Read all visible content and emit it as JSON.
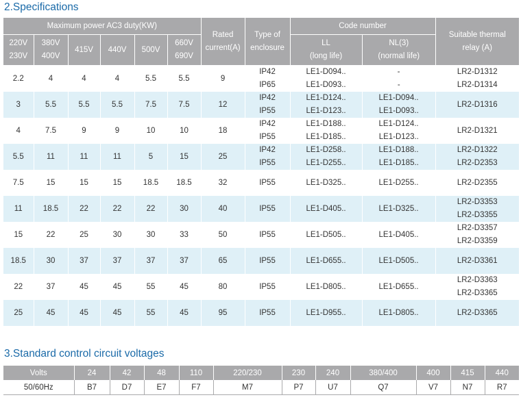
{
  "spec_title": "2.Specifications",
  "voltage_title": "3.Standard control circuit voltages",
  "spec_header": {
    "max_power": "Maximum power AC3 duty(KW)",
    "voltages": [
      [
        "220V",
        "230V"
      ],
      [
        "380V",
        "400V"
      ],
      [
        "415V"
      ],
      [
        "440V"
      ],
      [
        "500V"
      ],
      [
        "660V",
        "690V"
      ]
    ],
    "rated_current": [
      "Rated",
      "current(A)"
    ],
    "enclosure": [
      "Type of",
      "enclosure"
    ],
    "code_number": "Code number",
    "ll": [
      "LL",
      "(long life)"
    ],
    "nl": [
      "NL(3)",
      "(normal life)"
    ],
    "relay": [
      "Suitable thermal",
      "relay (A)"
    ]
  },
  "spec_rows": [
    {
      "p": [
        "2.2",
        "4",
        "4",
        "4",
        "5.5",
        "5.5"
      ],
      "a": "9",
      "enc": [
        "IP42",
        "IP65"
      ],
      "ll": [
        "LE1-D094..",
        "LE1-D093.."
      ],
      "nl": [
        "-",
        "-"
      ],
      "relay": [
        "LR2-D1312",
        "LR2-D1314"
      ]
    },
    {
      "p": [
        "3",
        "5.5",
        "5.5",
        "5.5",
        "7.5",
        "7.5"
      ],
      "a": "12",
      "enc": [
        "IP42",
        "IP55"
      ],
      "ll": [
        "LE1-D124..",
        "LE1-D123.."
      ],
      "nl": [
        "LE1-D094..",
        "LE1-D093.."
      ],
      "relay": [
        "LR2-D1316"
      ]
    },
    {
      "p": [
        "4",
        "7.5",
        "9",
        "9",
        "10",
        "10"
      ],
      "a": "18",
      "enc": [
        "IP42",
        "IP55"
      ],
      "ll": [
        "LE1-D188..",
        "LE1-D185.."
      ],
      "nl": [
        "LE1-D124..",
        "LE1-D123.."
      ],
      "relay": [
        "LR2-D1321"
      ]
    },
    {
      "p": [
        "5.5",
        "11",
        "11",
        "11",
        "5",
        "15"
      ],
      "a": "25",
      "enc": [
        "IP42",
        "IP55"
      ],
      "ll": [
        "LE1-D258..",
        "LE1-D255.."
      ],
      "nl": [
        "LE1-D188..",
        "LE1-D185.."
      ],
      "relay": [
        "LR2-D1322",
        "LR2-D2353"
      ]
    },
    {
      "p": [
        "7.5",
        "15",
        "15",
        "15",
        "18.5",
        "18.5"
      ],
      "a": "32",
      "enc": [
        "IP55"
      ],
      "ll": [
        "LE1-D325.."
      ],
      "nl": [
        "LE1-D255.."
      ],
      "relay": [
        "LR2-D2355"
      ]
    },
    {
      "p": [
        "11",
        "18.5",
        "22",
        "22",
        "22",
        "30"
      ],
      "a": "40",
      "enc": [
        "IP55"
      ],
      "ll": [
        "LE1-D405.."
      ],
      "nl": [
        "LE1-D325.."
      ],
      "relay": [
        "LR2-D3353",
        "LR2-D3355"
      ]
    },
    {
      "p": [
        "15",
        "22",
        "25",
        "30",
        "30",
        "33"
      ],
      "a": "50",
      "enc": [
        "IP55"
      ],
      "ll": [
        "LE1-D505.."
      ],
      "nl": [
        "LE1-D405.."
      ],
      "relay": [
        "LR2-D3357",
        "LR2-D3359"
      ]
    },
    {
      "p": [
        "18.5",
        "30",
        "37",
        "37",
        "37",
        "37"
      ],
      "a": "65",
      "enc": [
        "IP55"
      ],
      "ll": [
        "LE1-D655.."
      ],
      "nl": [
        "LE1-D505.."
      ],
      "relay": [
        "LR2-D3361"
      ]
    },
    {
      "p": [
        "22",
        "37",
        "45",
        "45",
        "55",
        "45"
      ],
      "a": "80",
      "enc": [
        "IP55"
      ],
      "ll": [
        "LE1-D805.."
      ],
      "nl": [
        "LE1-D655.."
      ],
      "relay": [
        "LR2-D3363",
        "LR2-D3365"
      ]
    },
    {
      "p": [
        "25",
        "45",
        "45",
        "45",
        "55",
        "45"
      ],
      "a": "95",
      "enc": [
        "IP55"
      ],
      "ll": [
        "LE1-D955.."
      ],
      "nl": [
        "LE1-D805.."
      ],
      "relay": [
        "LR2-D3365"
      ]
    }
  ],
  "voltage_table": {
    "headers": [
      "Volts",
      "24",
      "42",
      "48",
      "110",
      "220/230",
      "230",
      "240",
      "380/400",
      "400",
      "415",
      "440"
    ],
    "values": [
      "50/60Hz",
      "B7",
      "D7",
      "E7",
      "F7",
      "M7",
      "P7",
      "U7",
      "Q7",
      "V7",
      "N7",
      "R7"
    ]
  }
}
